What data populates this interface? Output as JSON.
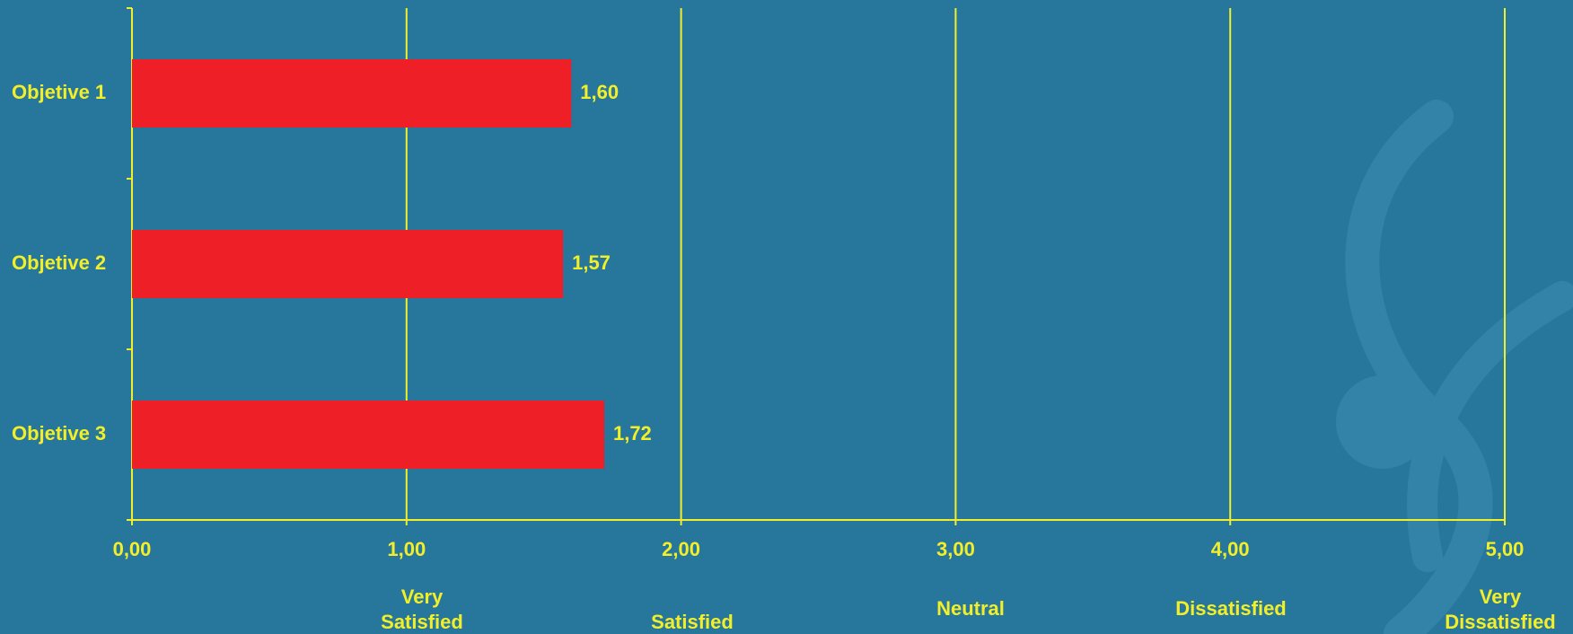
{
  "chart_data": {
    "type": "hbar",
    "categories": [
      "Objetive 1",
      "Objetive 2",
      "Objetive 3"
    ],
    "values": [
      1.6,
      1.57,
      1.72
    ],
    "value_labels": [
      "1,60",
      "1,57",
      "1,72"
    ],
    "color": "#ee1f26",
    "xlim": [
      0,
      5
    ],
    "xticks": [
      {
        "value": 0,
        "label": "0,00"
      },
      {
        "value": 1,
        "label": "1,00"
      },
      {
        "value": 2,
        "label": "2,00"
      },
      {
        "value": 3,
        "label": "3,00"
      },
      {
        "value": 4,
        "label": "4,00"
      },
      {
        "value": 5,
        "label": "5,00"
      }
    ],
    "grid": true,
    "scale_labels": [
      [
        "Very",
        "Satisfied"
      ],
      [
        "Satisfied"
      ],
      [
        "Neutral"
      ],
      [
        "Dissatisfied"
      ],
      [
        "Very",
        "Dissatisfied"
      ]
    ]
  }
}
